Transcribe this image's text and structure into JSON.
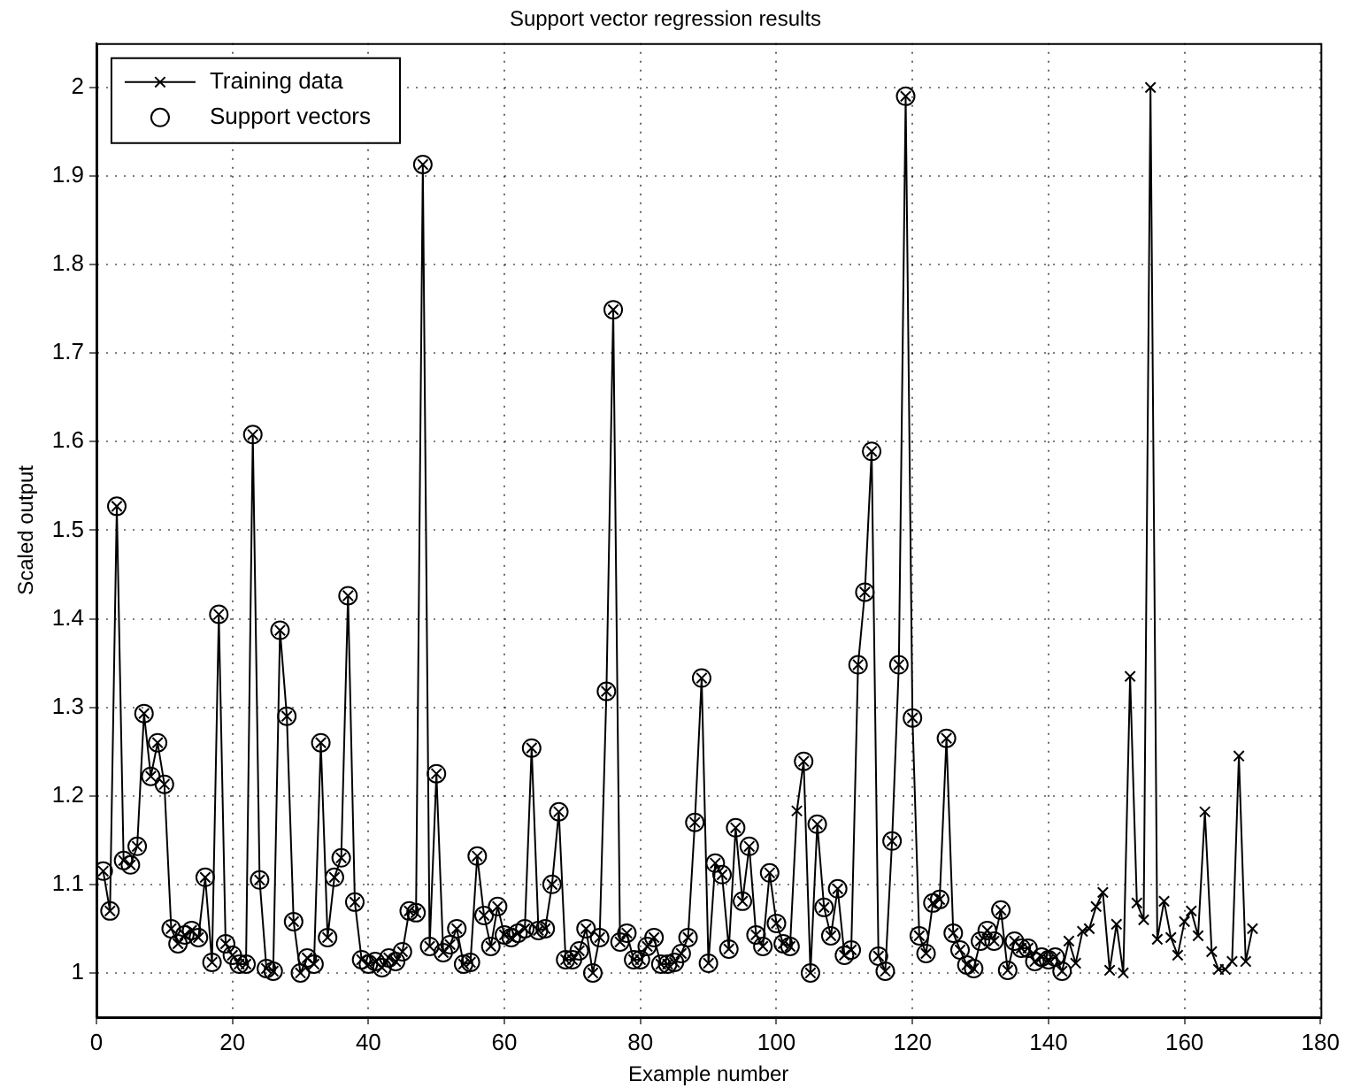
{
  "chart_data": {
    "type": "line",
    "title": "Support vector regression results",
    "xlabel": "Example number",
    "ylabel": "Scaled output",
    "xlim": [
      0,
      180
    ],
    "xticks": [
      0,
      20,
      40,
      60,
      80,
      100,
      120,
      140,
      160,
      180
    ],
    "ylim": [
      0.95,
      2.05
    ],
    "yticks": [
      1,
      1.1,
      1.2,
      1.3,
      1.4,
      1.5,
      1.6,
      1.7,
      1.8,
      1.9,
      2
    ],
    "grid": true,
    "legend": "top left",
    "series": [
      {
        "name": "Training data",
        "type": "line",
        "marker": "cross",
        "line_style": "solid",
        "color": "#000000",
        "x": [
          1,
          2,
          3,
          4,
          5,
          6,
          7,
          8,
          9,
          10,
          11,
          12,
          13,
          14,
          15,
          16,
          17,
          18,
          19,
          20,
          21,
          22,
          23,
          24,
          25,
          26,
          27,
          28,
          29,
          30,
          31,
          32,
          33,
          34,
          35,
          36,
          37,
          38,
          39,
          40,
          41,
          42,
          43,
          44,
          45,
          46,
          47,
          48,
          49,
          50,
          51,
          52,
          53,
          54,
          55,
          56,
          57,
          58,
          59,
          60,
          61,
          62,
          63,
          64,
          65,
          66,
          67,
          68,
          69,
          70,
          71,
          72,
          73,
          74,
          75,
          76,
          77,
          78,
          79,
          80,
          81,
          82,
          83,
          84,
          85,
          86,
          87,
          88,
          89,
          90,
          91,
          92,
          93,
          94,
          95,
          96,
          97,
          98,
          99,
          100,
          101,
          102,
          103,
          104,
          105,
          106,
          107,
          108,
          109,
          110,
          111,
          112,
          113,
          114,
          115,
          116,
          117,
          118,
          119,
          120,
          121,
          122,
          123,
          124,
          125,
          126,
          127,
          128,
          129,
          130,
          131,
          132,
          133,
          134,
          135,
          136,
          137,
          138,
          139,
          140,
          141,
          142,
          143,
          144,
          145,
          146,
          147,
          148,
          149,
          150,
          151,
          152,
          153,
          154,
          155,
          156,
          157,
          158,
          159,
          160,
          161,
          162,
          163,
          164,
          165,
          166,
          167,
          168,
          169,
          170
        ],
        "values": [
          1.115,
          1.07,
          1.527,
          1.127,
          1.122,
          1.143,
          1.293,
          1.222,
          1.26,
          1.213,
          1.05,
          1.033,
          1.043,
          1.048,
          1.04,
          1.108,
          1.012,
          1.405,
          1.033,
          1.02,
          1.01,
          1.01,
          1.608,
          1.105,
          1.005,
          1.002,
          1.387,
          1.29,
          1.058,
          1.0,
          1.017,
          1.01,
          1.26,
          1.04,
          1.108,
          1.13,
          1.426,
          1.08,
          1.015,
          1.01,
          1.013,
          1.006,
          1.017,
          1.013,
          1.024,
          1.07,
          1.068,
          1.913,
          1.03,
          1.225,
          1.023,
          1.032,
          1.05,
          1.01,
          1.012,
          1.132,
          1.065,
          1.03,
          1.075,
          1.043,
          1.04,
          1.045,
          1.05,
          1.254,
          1.048,
          1.05,
          1.1,
          1.182,
          1.015,
          1.015,
          1.025,
          1.05,
          1.0,
          1.04,
          1.318,
          1.749,
          1.035,
          1.045,
          1.015,
          1.015,
          1.03,
          1.04,
          1.01,
          1.01,
          1.012,
          1.022,
          1.04,
          1.17,
          1.333,
          1.011,
          1.124,
          1.111,
          1.027,
          1.164,
          1.081,
          1.143,
          1.043,
          1.03,
          1.113,
          1.056,
          1.033,
          1.03,
          1.183,
          1.239,
          1.0,
          1.168,
          1.074,
          1.042,
          1.095,
          1.02,
          1.026,
          1.348,
          1.43,
          1.589,
          1.019,
          1.002,
          1.149,
          1.348,
          1.99,
          1.288,
          1.042,
          1.022,
          1.079,
          1.083,
          1.265,
          1.045,
          1.026,
          1.009,
          1.005,
          1.036,
          1.048,
          1.036,
          1.071,
          1.003,
          1.036,
          1.028,
          1.028,
          1.013,
          1.018,
          1.015,
          1.018,
          1.002,
          1.036,
          1.011,
          1.047,
          1.05,
          1.075,
          1.091,
          1.003,
          1.055,
          1.0,
          1.335,
          1.079,
          1.06,
          2.0,
          1.038,
          1.081,
          1.04,
          1.02,
          1.058,
          1.07,
          1.042,
          1.182,
          1.024,
          1.004,
          1.004,
          1.013,
          1.245,
          1.013,
          1.05
        ]
      },
      {
        "name": "Support vectors",
        "type": "scatter",
        "marker": "circle",
        "color": "#000000",
        "x": [
          1,
          2,
          3,
          4,
          5,
          6,
          7,
          8,
          9,
          10,
          11,
          12,
          13,
          14,
          15,
          16,
          17,
          18,
          19,
          20,
          21,
          22,
          23,
          24,
          25,
          26,
          27,
          28,
          29,
          30,
          31,
          32,
          33,
          34,
          35,
          36,
          37,
          38,
          39,
          40,
          41,
          42,
          43,
          44,
          45,
          46,
          47,
          48,
          49,
          50,
          51,
          52,
          53,
          54,
          55,
          56,
          57,
          58,
          59,
          60,
          61,
          62,
          63,
          64,
          65,
          66,
          67,
          68,
          69,
          70,
          71,
          72,
          73,
          74,
          75,
          76,
          77,
          78,
          79,
          80,
          81,
          82,
          83,
          84,
          85,
          86,
          87,
          88,
          89,
          90,
          91,
          92,
          93,
          94,
          95,
          96,
          97,
          98,
          99,
          100,
          101,
          102,
          104,
          105,
          106,
          107,
          108,
          109,
          110,
          111,
          112,
          113,
          114,
          115,
          116,
          117,
          118,
          119,
          120,
          121,
          122,
          123,
          124,
          125,
          126,
          127,
          128,
          129,
          130,
          131,
          132,
          133,
          134,
          135,
          136,
          137,
          138,
          139,
          140,
          141,
          142
        ],
        "values": [
          1.115,
          1.07,
          1.527,
          1.127,
          1.122,
          1.143,
          1.293,
          1.222,
          1.26,
          1.213,
          1.05,
          1.033,
          1.043,
          1.048,
          1.04,
          1.108,
          1.012,
          1.405,
          1.033,
          1.02,
          1.01,
          1.01,
          1.608,
          1.105,
          1.005,
          1.002,
          1.387,
          1.29,
          1.058,
          1.0,
          1.017,
          1.01,
          1.26,
          1.04,
          1.108,
          1.13,
          1.426,
          1.08,
          1.015,
          1.01,
          1.013,
          1.006,
          1.017,
          1.013,
          1.024,
          1.07,
          1.068,
          1.913,
          1.03,
          1.225,
          1.023,
          1.032,
          1.05,
          1.01,
          1.012,
          1.132,
          1.065,
          1.03,
          1.075,
          1.043,
          1.04,
          1.045,
          1.05,
          1.254,
          1.048,
          1.05,
          1.1,
          1.182,
          1.015,
          1.015,
          1.025,
          1.05,
          1.0,
          1.04,
          1.318,
          1.749,
          1.035,
          1.045,
          1.015,
          1.015,
          1.03,
          1.04,
          1.01,
          1.01,
          1.012,
          1.022,
          1.04,
          1.17,
          1.333,
          1.011,
          1.124,
          1.111,
          1.027,
          1.164,
          1.081,
          1.143,
          1.043,
          1.03,
          1.113,
          1.056,
          1.033,
          1.03,
          1.239,
          1.0,
          1.168,
          1.074,
          1.042,
          1.095,
          1.02,
          1.026,
          1.348,
          1.43,
          1.589,
          1.019,
          1.002,
          1.149,
          1.348,
          1.99,
          1.288,
          1.042,
          1.022,
          1.079,
          1.083,
          1.265,
          1.045,
          1.026,
          1.009,
          1.005,
          1.036,
          1.048,
          1.036,
          1.071,
          1.003,
          1.036,
          1.028,
          1.028,
          1.013,
          1.018,
          1.015,
          1.018,
          1.002
        ]
      }
    ]
  }
}
